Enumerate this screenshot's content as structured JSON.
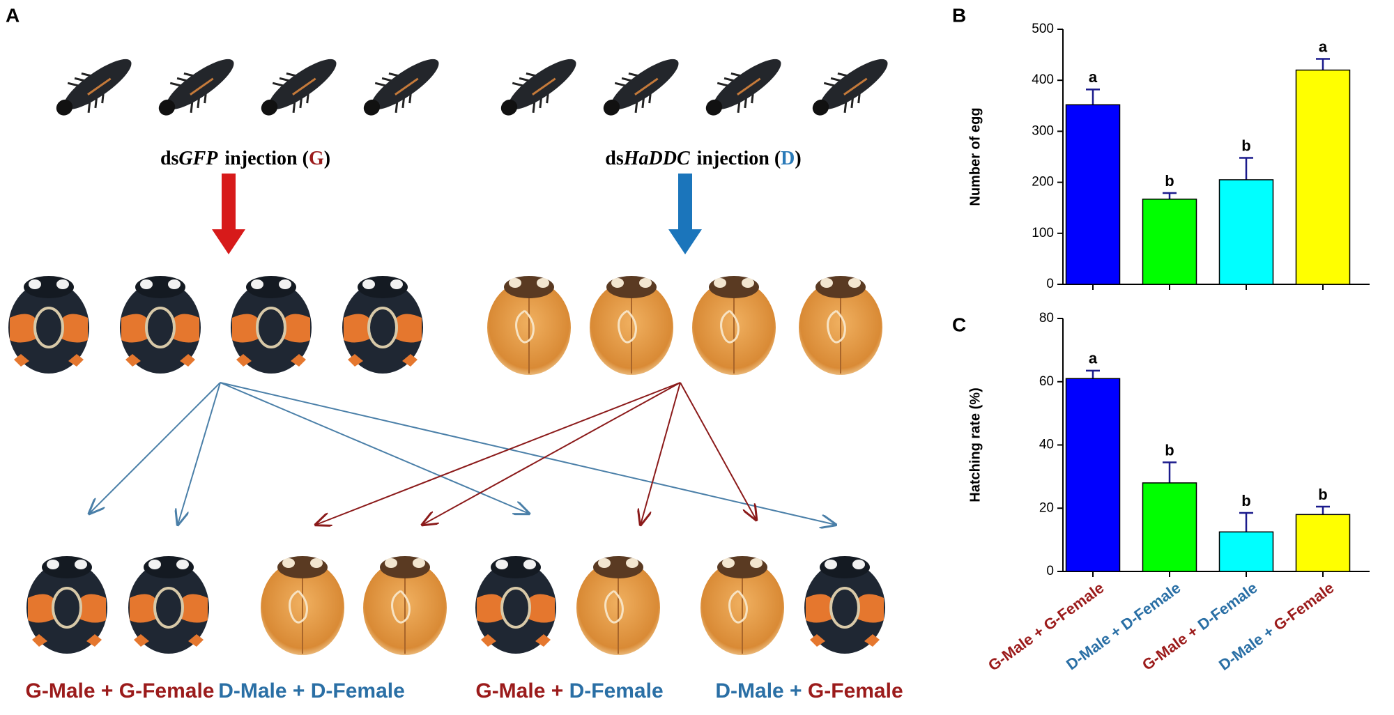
{
  "panel_labels": [
    "A",
    "B",
    "C"
  ],
  "diagram": {
    "injections": [
      {
        "prefix": "ds",
        "gene": "GFP",
        "middle": "injection (",
        "code": "G",
        "end": ")",
        "color": "#9b1b1b"
      },
      {
        "prefix": "ds",
        "gene": "HaDDC",
        "middle": "injection (",
        "code": "D",
        "end": ")",
        "color": "#2a7ab8"
      }
    ],
    "crosses": [
      "G-Male + G-Female",
      "D-Male + D-Female",
      "G-Male + D-Female",
      "D-Male + G-Female"
    ],
    "cross_colors": [
      [
        "#9b1b1b",
        "#9b1b1b"
      ],
      [
        "#2a6fa5",
        "#2a6fa5"
      ],
      [
        "#9b1b1b",
        "#2a6fa5"
      ],
      [
        "#2a6fa5",
        "#9b1b1b"
      ]
    ]
  },
  "chart_data": [
    {
      "type": "bar",
      "ylabel": "Number of egg",
      "categories": [
        "G-Male + G-Female",
        "D-Male + D-Female",
        "G-Male + D-Female",
        "D-Male + G-Female"
      ],
      "values": [
        352,
        167,
        205,
        420
      ],
      "errors": [
        30,
        12,
        43,
        22
      ],
      "annotations": [
        "a",
        "b",
        "b",
        "a"
      ],
      "colors": [
        "#0000ff",
        "#00ff00",
        "#00ffff",
        "#ffff00"
      ],
      "category_colors": [
        [
          "#9b1b1b",
          "#9b1b1b"
        ],
        [
          "#2a6fa5",
          "#2a6fa5"
        ],
        [
          "#9b1b1b",
          "#2a6fa5"
        ],
        [
          "#2a6fa5",
          "#9b1b1b"
        ]
      ],
      "ylim": [
        0,
        500
      ],
      "yticks": [
        0,
        100,
        200,
        300,
        400,
        500
      ]
    },
    {
      "type": "bar",
      "ylabel": "Hatching rate (%)",
      "categories": [
        "G-Male + G-Female",
        "D-Male + D-Female",
        "G-Male + D-Female",
        "D-Male + G-Female"
      ],
      "values": [
        61,
        28,
        12.5,
        18
      ],
      "errors": [
        2.5,
        6.5,
        6,
        2.5
      ],
      "annotations": [
        "a",
        "b",
        "b",
        "b"
      ],
      "colors": [
        "#0000ff",
        "#00ff00",
        "#00ffff",
        "#ffff00"
      ],
      "category_colors": [
        [
          "#9b1b1b",
          "#9b1b1b"
        ],
        [
          "#2a6fa5",
          "#2a6fa5"
        ],
        [
          "#9b1b1b",
          "#2a6fa5"
        ],
        [
          "#2a6fa5",
          "#9b1b1b"
        ]
      ],
      "ylim": [
        0,
        80
      ],
      "yticks": [
        0,
        20,
        40,
        60,
        80
      ]
    }
  ]
}
